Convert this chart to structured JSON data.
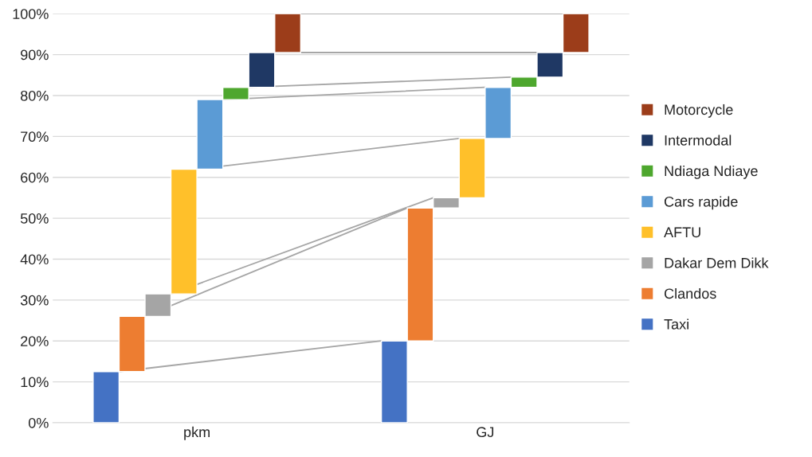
{
  "chart_data": {
    "type": "bar",
    "categories": [
      "pkm",
      "GJ"
    ],
    "series": [
      {
        "name": "Taxi",
        "color": "#4472c4",
        "values": [
          12.5,
          20
        ],
        "base": [
          0,
          0
        ]
      },
      {
        "name": "Clandos",
        "color": "#ed7d31",
        "values": [
          13.5,
          32.5
        ],
        "base": [
          12.5,
          20
        ]
      },
      {
        "name": "Dakar Dem Dikk",
        "color": "#a5a5a5",
        "values": [
          5.5,
          2.5
        ],
        "base": [
          26,
          52.5
        ]
      },
      {
        "name": "AFTU",
        "color": "#ffc02a",
        "values": [
          30.5,
          14.5
        ],
        "base": [
          31.5,
          55
        ]
      },
      {
        "name": "Cars rapide",
        "color": "#5b9bd5",
        "values": [
          17,
          12.5
        ],
        "base": [
          62,
          69.5
        ]
      },
      {
        "name": "Ndiaga Ndiaye",
        "color": "#4ea72e",
        "values": [
          3,
          2.5
        ],
        "base": [
          79,
          82
        ]
      },
      {
        "name": "Intermodal",
        "color": "#1f3864",
        "values": [
          8.5,
          6
        ],
        "base": [
          82,
          84.5
        ]
      },
      {
        "name": "Motorcycle",
        "color": "#9c3d1a",
        "values": [
          9.5,
          9.5
        ],
        "base": [
          90.5,
          90.5
        ]
      }
    ],
    "ylim": [
      0,
      100
    ],
    "yticks": [
      {
        "value": 0,
        "label": "0%"
      },
      {
        "value": 10,
        "label": "10%"
      },
      {
        "value": 20,
        "label": "20%"
      },
      {
        "value": 30,
        "label": "30%"
      },
      {
        "value": 40,
        "label": "40%"
      },
      {
        "value": 50,
        "label": "50%"
      },
      {
        "value": 60,
        "label": "60%"
      },
      {
        "value": 70,
        "label": "70%"
      },
      {
        "value": 80,
        "label": "80%"
      },
      {
        "value": 90,
        "label": "90%"
      },
      {
        "value": 100,
        "label": "100%"
      }
    ],
    "grid": "y",
    "legend": "right"
  }
}
